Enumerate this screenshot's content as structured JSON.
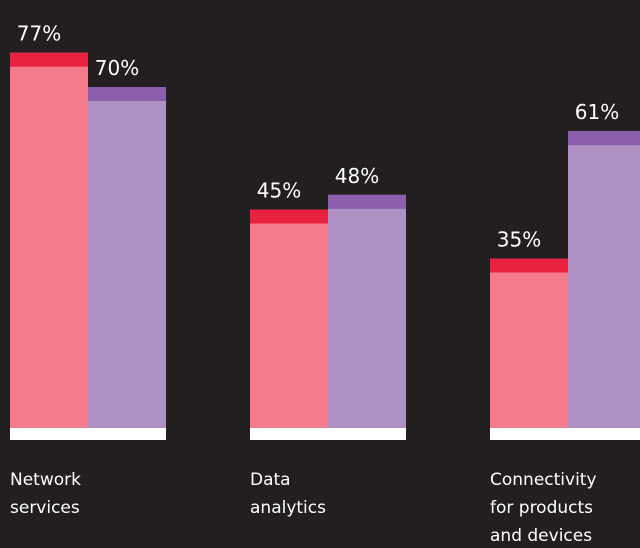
{
  "chart_data": {
    "type": "bar",
    "categories": [
      "Network services",
      "Data analytics",
      "Connectivity for products and devices"
    ],
    "series": [
      {
        "color": "#f47b8b",
        "cap_color": "#e8213f",
        "values": [
          77,
          45,
          35
        ],
        "value_labels": [
          "77%",
          "45%",
          "35%"
        ]
      },
      {
        "color": "#ad91c4",
        "cap_color": "#8c5fad",
        "values": [
          70,
          48,
          61
        ],
        "value_labels": [
          "70%",
          "48%",
          "61%"
        ]
      }
    ]
  }
}
